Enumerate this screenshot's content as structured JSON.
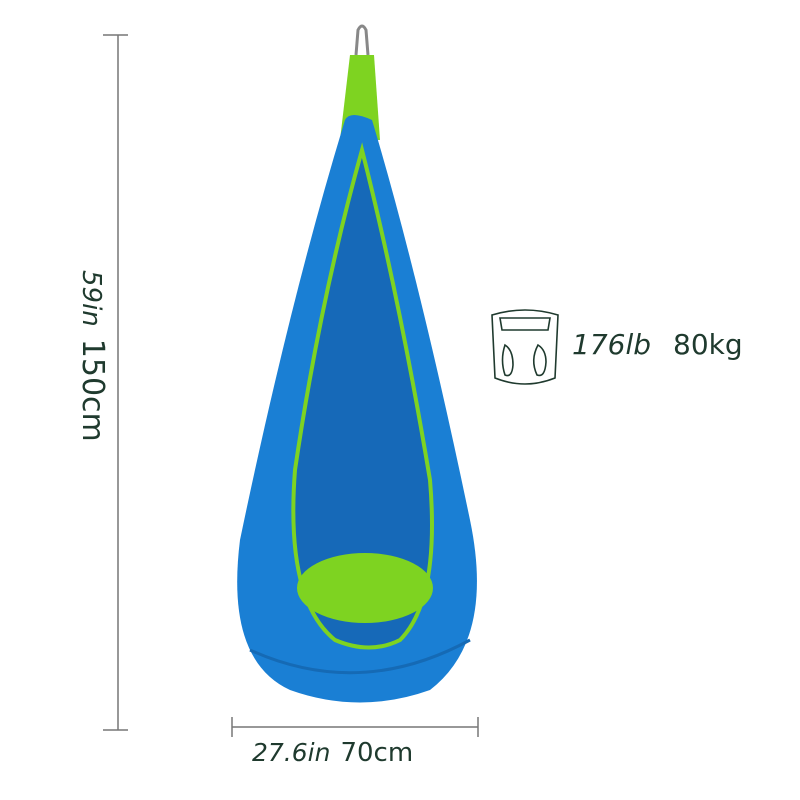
{
  "height": {
    "imperial": "59in",
    "metric": "150cm"
  },
  "width": {
    "imperial": "27.6in",
    "metric": "70cm"
  },
  "weight_capacity": {
    "imperial": "176lb",
    "metric": "80kg",
    "icon": "bathroom-scale-icon"
  },
  "colors": {
    "pod_blue": "#1a7fd4",
    "pod_green": "#7ed321",
    "text": "#1f3a2e",
    "lines": "#777777"
  }
}
